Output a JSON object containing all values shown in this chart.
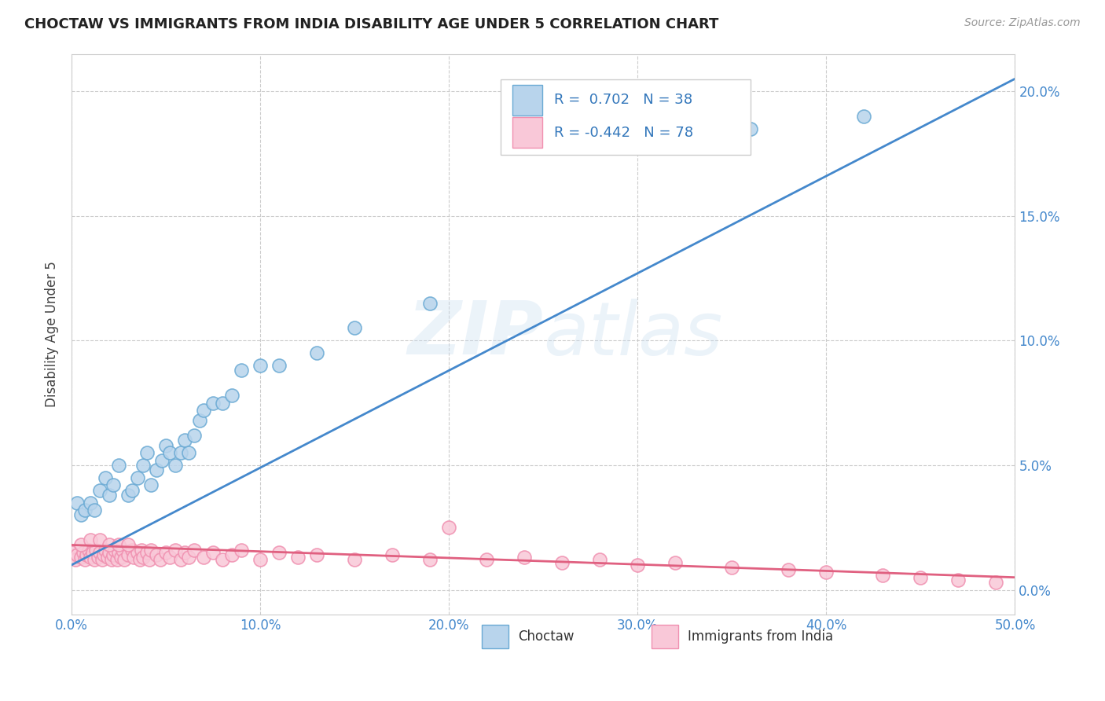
{
  "title": "CHOCTAW VS IMMIGRANTS FROM INDIA DISABILITY AGE UNDER 5 CORRELATION CHART",
  "source": "Source: ZipAtlas.com",
  "ylabel": "Disability Age Under 5",
  "xlabel_ticks": [
    "0.0%",
    "10.0%",
    "20.0%",
    "30.0%",
    "40.0%",
    "50.0%"
  ],
  "ylabel_ticks_left": [
    "",
    "",
    "",
    "",
    ""
  ],
  "ylabel_ticks_right": [
    "0.0%",
    "5.0%",
    "10.0%",
    "15.0%",
    "20.0%"
  ],
  "xmin": 0.0,
  "xmax": 0.5,
  "ymin": -0.01,
  "ymax": 0.215,
  "watermark": "ZIPatlas",
  "legend1_r": "0.702",
  "legend1_n": "38",
  "legend2_r": "-0.442",
  "legend2_n": "78",
  "choctaw_color": "#b8d4ec",
  "choctaw_edge": "#6aaad4",
  "india_color": "#f9c8d8",
  "india_edge": "#f090b0",
  "line1_color": "#4488cc",
  "line2_color": "#e06080",
  "choctaw_x": [
    0.003,
    0.005,
    0.007,
    0.01,
    0.012,
    0.015,
    0.018,
    0.02,
    0.022,
    0.025,
    0.03,
    0.032,
    0.035,
    0.038,
    0.04,
    0.042,
    0.045,
    0.048,
    0.05,
    0.052,
    0.055,
    0.058,
    0.06,
    0.062,
    0.065,
    0.068,
    0.07,
    0.075,
    0.08,
    0.085,
    0.09,
    0.1,
    0.11,
    0.13,
    0.15,
    0.19,
    0.36,
    0.42
  ],
  "choctaw_y": [
    0.035,
    0.03,
    0.032,
    0.035,
    0.032,
    0.04,
    0.045,
    0.038,
    0.042,
    0.05,
    0.038,
    0.04,
    0.045,
    0.05,
    0.055,
    0.042,
    0.048,
    0.052,
    0.058,
    0.055,
    0.05,
    0.055,
    0.06,
    0.055,
    0.062,
    0.068,
    0.072,
    0.075,
    0.075,
    0.078,
    0.088,
    0.09,
    0.09,
    0.095,
    0.105,
    0.115,
    0.185,
    0.19
  ],
  "india_x": [
    0.0,
    0.002,
    0.003,
    0.005,
    0.006,
    0.007,
    0.008,
    0.009,
    0.01,
    0.011,
    0.012,
    0.013,
    0.014,
    0.015,
    0.016,
    0.017,
    0.018,
    0.019,
    0.02,
    0.021,
    0.022,
    0.023,
    0.024,
    0.025,
    0.026,
    0.027,
    0.028,
    0.03,
    0.032,
    0.033,
    0.035,
    0.036,
    0.037,
    0.038,
    0.04,
    0.041,
    0.042,
    0.045,
    0.047,
    0.05,
    0.052,
    0.055,
    0.058,
    0.06,
    0.062,
    0.065,
    0.07,
    0.075,
    0.08,
    0.085,
    0.09,
    0.1,
    0.11,
    0.12,
    0.13,
    0.15,
    0.17,
    0.19,
    0.2,
    0.22,
    0.24,
    0.26,
    0.28,
    0.3,
    0.32,
    0.35,
    0.38,
    0.4,
    0.43,
    0.45,
    0.47,
    0.49,
    0.005,
    0.01,
    0.015,
    0.02,
    0.025,
    0.03
  ],
  "india_y": [
    0.015,
    0.012,
    0.014,
    0.013,
    0.015,
    0.012,
    0.014,
    0.016,
    0.013,
    0.015,
    0.012,
    0.016,
    0.013,
    0.015,
    0.012,
    0.014,
    0.016,
    0.013,
    0.015,
    0.012,
    0.014,
    0.016,
    0.012,
    0.015,
    0.013,
    0.016,
    0.012,
    0.014,
    0.016,
    0.013,
    0.015,
    0.012,
    0.016,
    0.013,
    0.015,
    0.012,
    0.016,
    0.014,
    0.012,
    0.015,
    0.013,
    0.016,
    0.012,
    0.015,
    0.013,
    0.016,
    0.013,
    0.015,
    0.012,
    0.014,
    0.016,
    0.012,
    0.015,
    0.013,
    0.014,
    0.012,
    0.014,
    0.012,
    0.025,
    0.012,
    0.013,
    0.011,
    0.012,
    0.01,
    0.011,
    0.009,
    0.008,
    0.007,
    0.006,
    0.005,
    0.004,
    0.003,
    0.018,
    0.02,
    0.02,
    0.018,
    0.018,
    0.018
  ]
}
